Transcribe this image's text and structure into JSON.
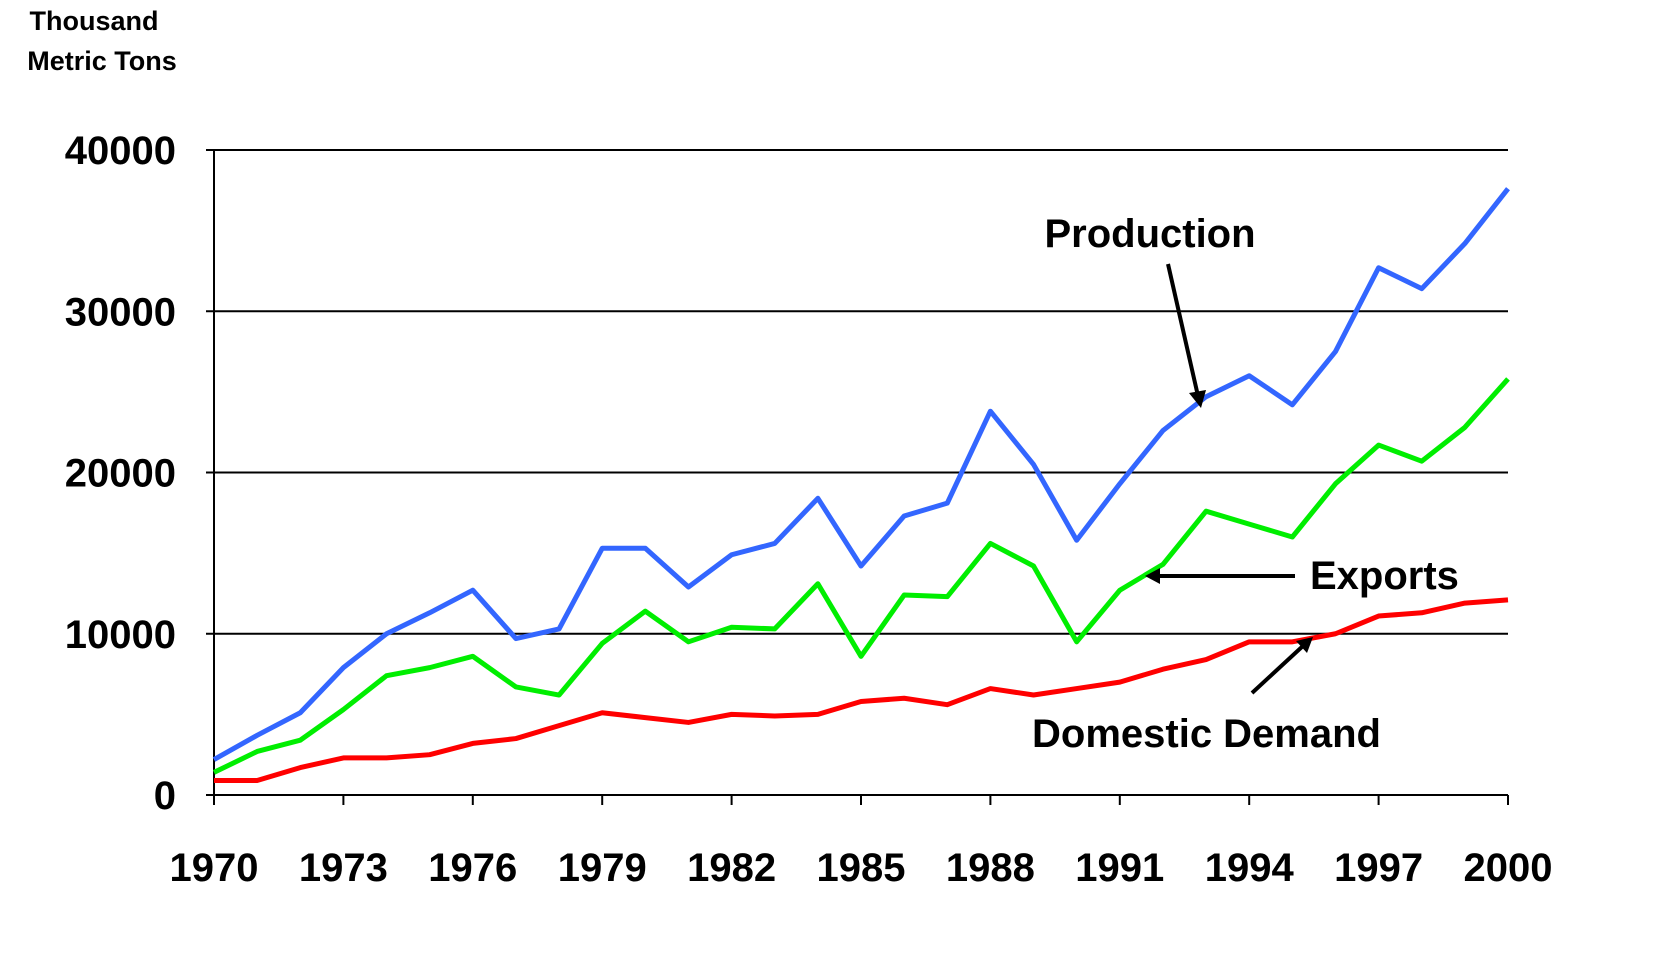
{
  "chart_data": {
    "type": "line",
    "y_label": [
      "Thousand",
      "Metric Tons"
    ],
    "x": [
      1970,
      1971,
      1972,
      1973,
      1974,
      1975,
      1976,
      1977,
      1978,
      1979,
      1980,
      1981,
      1982,
      1983,
      1984,
      1985,
      1986,
      1987,
      1988,
      1989,
      1990,
      1991,
      1992,
      1993,
      1994,
      1995,
      1996,
      1997,
      1998,
      1999,
      2000
    ],
    "series": [
      {
        "name": "Production",
        "color": "#3366ff",
        "values": [
          2200,
          3700,
          5100,
          7900,
          10000,
          11300,
          12700,
          9700,
          10300,
          15300,
          15300,
          12900,
          14900,
          15600,
          18400,
          14200,
          17300,
          18100,
          23800,
          20500,
          15800,
          19300,
          22600,
          24700,
          26000,
          24200,
          27500,
          32700,
          31400,
          34200,
          37600
        ]
      },
      {
        "name": "Exports",
        "color": "#00ee00",
        "values": [
          1400,
          2700,
          3400,
          5300,
          7400,
          7900,
          8600,
          6700,
          6200,
          9400,
          11400,
          9500,
          10400,
          10300,
          13100,
          8600,
          12400,
          12300,
          15600,
          14200,
          9500,
          12700,
          14300,
          17600,
          16800,
          16000,
          19300,
          21700,
          20700,
          22800,
          25800
        ]
      },
      {
        "name": "Domestic Demand",
        "color": "#ff0000",
        "values": [
          900,
          900,
          1700,
          2300,
          2300,
          2500,
          3200,
          3500,
          4300,
          5100,
          4800,
          4500,
          5000,
          4900,
          5000,
          5800,
          6000,
          5600,
          6600,
          6200,
          6600,
          7000,
          7800,
          8400,
          9500,
          9500,
          10000,
          11100,
          11300,
          11900,
          12100
        ]
      }
    ],
    "xlim": [
      1970,
      2000
    ],
    "xticks": [
      1970,
      1973,
      1976,
      1979,
      1982,
      1985,
      1988,
      1991,
      1994,
      1997,
      2000
    ],
    "ylim": [
      0,
      40000
    ],
    "yticks": [
      0,
      10000,
      20000,
      30000,
      40000
    ],
    "grid": true
  }
}
